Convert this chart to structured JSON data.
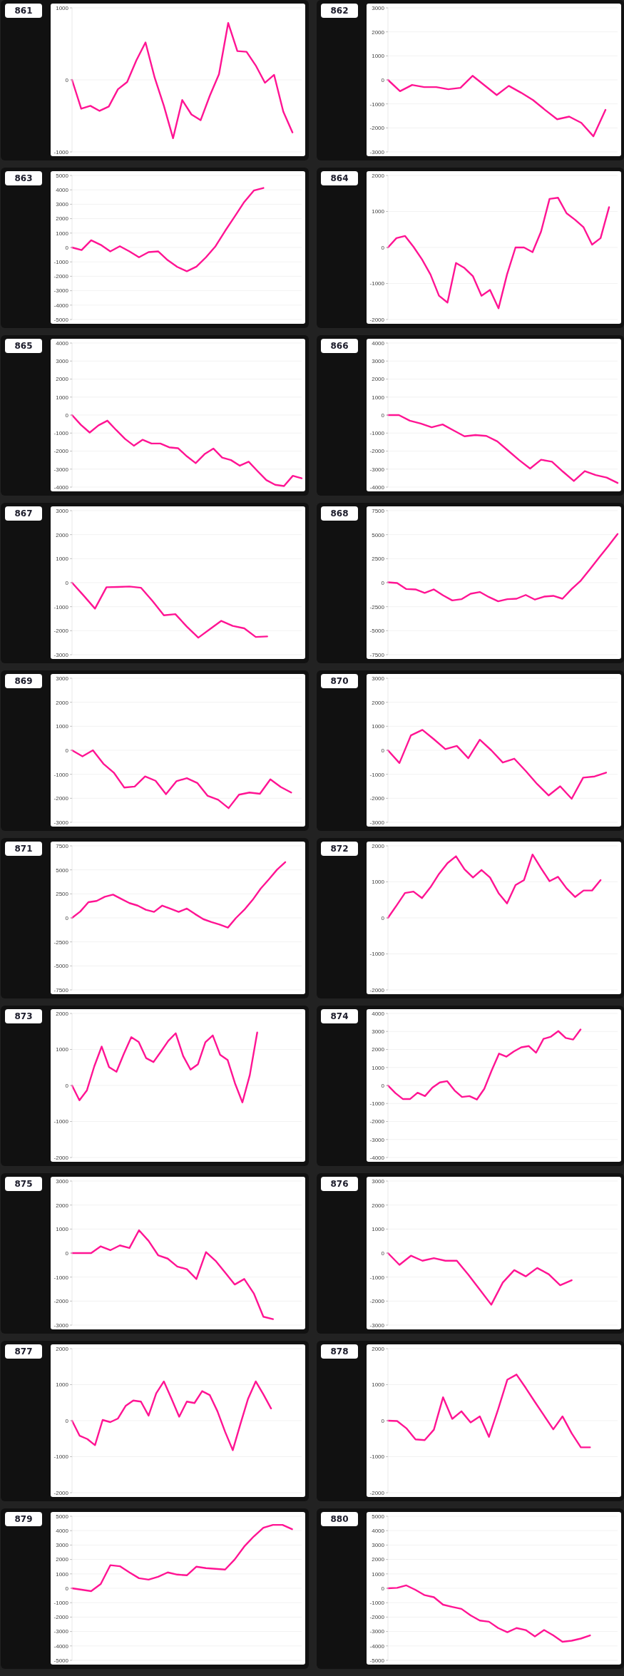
{
  "chart_data": [
    {
      "type": "line",
      "title": "861",
      "color": "#ff1493",
      "grid": "y",
      "tick_labels": "y",
      "ylim": [
        -1000,
        1000
      ],
      "yticks": [
        -1000,
        0,
        1000
      ],
      "categories": [
        null,
        null,
        null,
        null,
        null,
        null,
        null,
        null,
        null,
        null,
        null,
        null,
        null,
        null,
        null,
        null,
        null,
        null,
        null,
        null,
        null,
        null,
        null,
        null,
        null,
        null
      ],
      "values": [
        0,
        -400,
        -360,
        -430,
        -370,
        -130,
        -30,
        270,
        520,
        30,
        -360,
        -810,
        -280,
        -480,
        -560,
        -220,
        80,
        790,
        400,
        390,
        200,
        -40,
        70,
        -440,
        -730,
        null
      ]
    },
    {
      "type": "line",
      "title": "862",
      "color": "#ff1493",
      "grid": "y",
      "tick_labels": "y",
      "ylim": [
        -3000,
        3000
      ],
      "yticks": [
        -3000,
        -2000,
        -1000,
        0,
        1000,
        2000,
        3000
      ],
      "categories": [
        null,
        null,
        null,
        null,
        null,
        null,
        null,
        null,
        null,
        null,
        null,
        null,
        null,
        null,
        null,
        null,
        null,
        null,
        null,
        null
      ],
      "values": [
        0,
        -470,
        -210,
        -300,
        -300,
        -390,
        -330,
        170,
        -230,
        -630,
        -250,
        -530,
        -840,
        -1250,
        -1640,
        -1530,
        -1790,
        -2350,
        -1250,
        null
      ]
    },
    {
      "type": "line",
      "title": "863",
      "color": "#ff1493",
      "grid": "y",
      "tick_labels": "y",
      "ylim": [
        -5000,
        5000
      ],
      "yticks": [
        -5000,
        -4000,
        -3000,
        -2000,
        -1000,
        0,
        1000,
        2000,
        3000,
        4000,
        5000
      ],
      "categories": [
        null,
        null,
        null,
        null,
        null,
        null,
        null,
        null,
        null,
        null,
        null,
        null,
        null,
        null,
        null,
        null,
        null,
        null,
        null,
        null,
        null,
        null,
        null,
        null,
        null
      ],
      "values": [
        0,
        -180,
        500,
        180,
        -270,
        90,
        -270,
        -680,
        -320,
        -270,
        -880,
        -1350,
        -1650,
        -1330,
        -680,
        90,
        1150,
        2150,
        3160,
        3950,
        4130,
        null,
        null,
        null,
        null
      ]
    },
    {
      "type": "line",
      "title": "864",
      "color": "#ff1493",
      "grid": "y",
      "tick_labels": "y",
      "ylim": [
        -2000,
        2000
      ],
      "yticks": [
        -2000,
        -1000,
        0,
        1000,
        2000
      ],
      "categories": [
        null,
        null,
        null,
        null,
        null,
        null,
        null,
        null,
        null,
        null,
        null,
        null,
        null,
        null,
        null,
        null,
        null,
        null,
        null,
        null,
        null,
        null,
        null,
        null,
        null,
        null,
        null,
        null
      ],
      "values": [
        0,
        260,
        320,
        20,
        -330,
        -750,
        -1340,
        -1530,
        -430,
        -570,
        -800,
        -1340,
        -1180,
        -1690,
        -750,
        0,
        0,
        -130,
        440,
        1350,
        1380,
        950,
        770,
        560,
        80,
        260,
        1120,
        null
      ]
    },
    {
      "type": "line",
      "title": "865",
      "color": "#ff1493",
      "grid": "y",
      "tick_labels": "y",
      "ylim": [
        -4000,
        4000
      ],
      "yticks": [
        -4000,
        -3000,
        -2000,
        -1000,
        0,
        1000,
        2000,
        3000,
        4000
      ],
      "categories": [
        null,
        null,
        null,
        null,
        null,
        null,
        null,
        null,
        null,
        null,
        null,
        null,
        null,
        null,
        null,
        null,
        null,
        null,
        null,
        null,
        null,
        null,
        null,
        null,
        null,
        null,
        null
      ],
      "values": [
        0,
        -540,
        -970,
        -570,
        -310,
        -830,
        -1320,
        -1700,
        -1370,
        -1580,
        -1580,
        -1790,
        -1840,
        -2290,
        -2670,
        -2170,
        -1860,
        -2360,
        -2500,
        -2810,
        -2590,
        -3110,
        -3610,
        -3870,
        -3940,
        -3370,
        -3510
      ]
    },
    {
      "type": "line",
      "title": "866",
      "color": "#ff1493",
      "grid": "y",
      "tick_labels": "y",
      "ylim": [
        -4000,
        4000
      ],
      "yticks": [
        -4000,
        -3000,
        -2000,
        -1000,
        0,
        1000,
        2000,
        3000,
        4000
      ],
      "categories": [
        null,
        null,
        null,
        null,
        null,
        null,
        null,
        null,
        null,
        null,
        null,
        null,
        null,
        null,
        null,
        null,
        null,
        null,
        null,
        null,
        null,
        null
      ],
      "values": [
        0,
        0,
        -310,
        -470,
        -680,
        -520,
        -850,
        -1180,
        -1110,
        -1160,
        -1460,
        -1980,
        -2500,
        -2970,
        -2480,
        -2590,
        -3140,
        -3660,
        -3110,
        -3330,
        -3470,
        -3770
      ]
    },
    {
      "type": "line",
      "title": "867",
      "color": "#ff1493",
      "grid": "y",
      "tick_labels": "y",
      "ylim": [
        -3000,
        3000
      ],
      "yticks": [
        -3000,
        -2000,
        -1000,
        0,
        1000,
        2000,
        3000
      ],
      "categories": [
        null,
        null,
        null,
        null,
        null,
        null,
        null,
        null,
        null,
        null,
        null,
        null,
        null,
        null,
        null,
        null,
        null,
        null,
        null,
        null,
        null
      ],
      "values": [
        0,
        -530,
        -1080,
        -190,
        -180,
        -160,
        -210,
        -760,
        -1360,
        -1310,
        -1830,
        -2290,
        -1940,
        -1590,
        -1800,
        -1900,
        -2260,
        -2240,
        null,
        null,
        null
      ]
    },
    {
      "type": "line",
      "title": "868",
      "color": "#ff1493",
      "grid": "y",
      "tick_labels": "y",
      "ylim": [
        -7500,
        7500
      ],
      "yticks": [
        -7500,
        -5000,
        -2500,
        0,
        2500,
        5000,
        7500
      ],
      "categories": [
        null,
        null,
        null,
        null,
        null,
        null,
        null,
        null,
        null,
        null,
        null,
        null,
        null,
        null,
        null,
        null,
        null,
        null,
        null,
        null,
        null,
        null,
        null,
        null,
        null,
        null
      ],
      "values": [
        40,
        -40,
        -660,
        -700,
        -1060,
        -700,
        -1320,
        -1850,
        -1720,
        -1150,
        -970,
        -1500,
        -1940,
        -1720,
        -1670,
        -1280,
        -1760,
        -1450,
        -1370,
        -1670,
        -660,
        220,
        1410,
        2640,
        3830,
        5070
      ]
    },
    {
      "type": "line",
      "title": "869",
      "color": "#ff1493",
      "grid": "y",
      "tick_labels": "y",
      "ylim": [
        -3000,
        3000
      ],
      "yticks": [
        -3000,
        -2000,
        -1000,
        0,
        1000,
        2000,
        3000
      ],
      "categories": [
        null,
        null,
        null,
        null,
        null,
        null,
        null,
        null,
        null,
        null,
        null,
        null,
        null,
        null,
        null,
        null,
        null,
        null,
        null,
        null,
        null,
        null,
        null
      ],
      "values": [
        0,
        -250,
        0,
        -560,
        -930,
        -1550,
        -1510,
        -1090,
        -1270,
        -1830,
        -1290,
        -1160,
        -1360,
        -1900,
        -2060,
        -2410,
        -1850,
        -1760,
        -1810,
        -1210,
        -1530,
        -1760,
        null
      ]
    },
    {
      "type": "line",
      "title": "870",
      "color": "#ff1493",
      "grid": "y",
      "tick_labels": "y",
      "ylim": [
        -3000,
        3000
      ],
      "yticks": [
        -3000,
        -2000,
        -1000,
        0,
        1000,
        2000,
        3000
      ],
      "categories": [
        null,
        null,
        null,
        null,
        null,
        null,
        null,
        null,
        null,
        null,
        null,
        null,
        null,
        null,
        null,
        null,
        null,
        null,
        null,
        null,
        null
      ],
      "values": [
        0,
        -530,
        620,
        850,
        460,
        50,
        180,
        -330,
        440,
        0,
        -510,
        -350,
        -860,
        -1410,
        -1880,
        -1500,
        -2020,
        -1140,
        -1090,
        -930,
        null
      ]
    },
    {
      "type": "line",
      "title": "871",
      "color": "#ff1493",
      "grid": "y",
      "tick_labels": "y",
      "ylim": [
        -7500,
        7500
      ],
      "yticks": [
        -7500,
        -5000,
        -2500,
        0,
        2500,
        5000,
        7500
      ],
      "categories": [
        null,
        null,
        null,
        null,
        null,
        null,
        null,
        null,
        null,
        null,
        null,
        null,
        null,
        null,
        null,
        null,
        null,
        null,
        null,
        null,
        null,
        null,
        null,
        null,
        null,
        null,
        null,
        null,
        null
      ],
      "values": [
        0,
        660,
        1630,
        1760,
        2200,
        2420,
        1980,
        1540,
        1280,
        840,
        620,
        1280,
        950,
        620,
        970,
        400,
        -130,
        -440,
        -700,
        -1010,
        0,
        840,
        1850,
        3040,
        4010,
        5020,
        5810,
        null,
        null
      ]
    },
    {
      "type": "line",
      "title": "872",
      "color": "#ff1493",
      "grid": "y",
      "tick_labels": "y",
      "ylim": [
        -2000,
        2000
      ],
      "yticks": [
        -2000,
        -1000,
        0,
        1000,
        2000
      ],
      "categories": [
        null,
        null,
        null,
        null,
        null,
        null,
        null,
        null,
        null,
        null,
        null,
        null,
        null,
        null,
        null,
        null,
        null,
        null,
        null,
        null,
        null,
        null,
        null,
        null,
        null,
        null,
        null,
        null
      ],
      "values": [
        0,
        340,
        690,
        730,
        550,
        850,
        1220,
        1520,
        1710,
        1350,
        1120,
        1330,
        1120,
        690,
        400,
        910,
        1050,
        1760,
        1380,
        1020,
        1140,
        820,
        580,
        760,
        760,
        1050,
        null,
        null
      ]
    },
    {
      "type": "line",
      "title": "873",
      "color": "#ff1493",
      "grid": "y",
      "tick_labels": "y",
      "ylim": [
        -2000,
        2000
      ],
      "yticks": [
        -2000,
        -1000,
        0,
        1000,
        2000
      ],
      "categories": [
        null,
        null,
        null,
        null,
        null,
        null,
        null,
        null,
        null,
        null,
        null,
        null,
        null,
        null,
        null,
        null,
        null,
        null,
        null,
        null,
        null,
        null,
        null,
        null,
        null,
        null,
        null,
        null,
        null,
        null,
        null,
        null
      ],
      "values": [
        0,
        -410,
        -140,
        530,
        1080,
        510,
        380,
        880,
        1340,
        1210,
        760,
        650,
        940,
        1240,
        1450,
        820,
        440,
        590,
        1200,
        1390,
        850,
        710,
        60,
        -470,
        290,
        1470,
        null,
        null,
        null,
        null,
        null,
        null
      ]
    },
    {
      "type": "line",
      "title": "874",
      "color": "#ff1493",
      "grid": "y",
      "tick_labels": "y",
      "ylim": [
        -4000,
        4000
      ],
      "yticks": [
        -4000,
        -3000,
        -2000,
        -1000,
        0,
        1000,
        2000,
        3000,
        4000
      ],
      "categories": [
        null,
        null,
        null,
        null,
        null,
        null,
        null,
        null,
        null,
        null,
        null,
        null,
        null,
        null,
        null,
        null,
        null,
        null,
        null,
        null,
        null,
        null,
        null,
        null,
        null,
        null,
        null,
        null,
        null,
        null,
        null,
        null
      ],
      "values": [
        0,
        -420,
        -750,
        -750,
        -400,
        -590,
        -120,
        170,
        240,
        -280,
        -640,
        -590,
        -780,
        -190,
        830,
        1770,
        1600,
        1890,
        2120,
        2190,
        1820,
        2590,
        2710,
        3020,
        2640,
        2550,
        3110,
        null,
        null,
        null,
        null,
        null
      ]
    },
    {
      "type": "line",
      "title": "875",
      "color": "#ff1493",
      "grid": "y",
      "tick_labels": "y",
      "ylim": [
        -3000,
        3000
      ],
      "yticks": [
        -3000,
        -2000,
        -1000,
        0,
        1000,
        2000,
        3000
      ],
      "categories": [
        null,
        null,
        null,
        null,
        null,
        null,
        null,
        null,
        null,
        null,
        null,
        null,
        null,
        null,
        null,
        null,
        null,
        null,
        null,
        null,
        null,
        null,
        null,
        null,
        null
      ],
      "values": [
        0,
        0,
        0,
        280,
        120,
        320,
        210,
        950,
        510,
        -90,
        -230,
        -560,
        -670,
        -1080,
        40,
        -320,
        -810,
        -1310,
        -1080,
        -1680,
        -2650,
        -2750,
        null,
        null,
        null
      ]
    },
    {
      "type": "line",
      "title": "876",
      "color": "#ff1493",
      "grid": "y",
      "tick_labels": "y",
      "ylim": [
        -3000,
        3000
      ],
      "yticks": [
        -3000,
        -2000,
        -1000,
        0,
        1000,
        2000,
        3000
      ],
      "categories": [
        null,
        null,
        null,
        null,
        null,
        null,
        null,
        null,
        null,
        null,
        null,
        null,
        null,
        null,
        null,
        null,
        null,
        null,
        null,
        null,
        null
      ],
      "values": [
        0,
        -490,
        -110,
        -320,
        -210,
        -320,
        -320,
        -900,
        -1520,
        -2150,
        -1230,
        -710,
        -970,
        -620,
        -880,
        -1340,
        -1130,
        null,
        null,
        null,
        null
      ]
    },
    {
      "type": "line",
      "title": "877",
      "color": "#ff1493",
      "grid": "y",
      "tick_labels": "y",
      "ylim": [
        -2000,
        2000
      ],
      "yticks": [
        -2000,
        -1000,
        0,
        1000,
        2000
      ],
      "categories": [
        null,
        null,
        null,
        null,
        null,
        null,
        null,
        null,
        null,
        null,
        null,
        null,
        null,
        null,
        null,
        null,
        null,
        null,
        null,
        null,
        null,
        null,
        null,
        null,
        null,
        null,
        null,
        null,
        null,
        null,
        null
      ],
      "values": [
        0,
        -420,
        -510,
        -680,
        20,
        -40,
        60,
        410,
        560,
        530,
        140,
        760,
        1090,
        610,
        110,
        530,
        490,
        820,
        710,
        260,
        -310,
        -820,
        -90,
        610,
        1090,
        730,
        340,
        null,
        null,
        null,
        null
      ]
    },
    {
      "type": "line",
      "title": "878",
      "color": "#ff1493",
      "grid": "y",
      "tick_labels": "y",
      "ylim": [
        -2000,
        2000
      ],
      "yticks": [
        -2000,
        -1000,
        0,
        1000,
        2000
      ],
      "categories": [
        null,
        null,
        null,
        null,
        null,
        null,
        null,
        null,
        null,
        null,
        null,
        null,
        null,
        null,
        null,
        null,
        null,
        null,
        null,
        null,
        null,
        null,
        null,
        null,
        null,
        null
      ],
      "values": [
        0,
        -10,
        -210,
        -520,
        -540,
        -250,
        650,
        50,
        260,
        -50,
        120,
        -450,
        320,
        1140,
        1280,
        910,
        520,
        140,
        -240,
        120,
        -350,
        -740,
        -740,
        null,
        null,
        null
      ]
    },
    {
      "type": "line",
      "title": "879",
      "color": "#ff1493",
      "grid": "y",
      "tick_labels": "y",
      "ylim": [
        -5000,
        5000
      ],
      "yticks": [
        -5000,
        -4000,
        -3000,
        -2000,
        -1000,
        0,
        1000,
        2000,
        3000,
        4000,
        5000
      ],
      "categories": [
        null,
        null,
        null,
        null,
        null,
        null,
        null,
        null,
        null,
        null,
        null,
        null,
        null,
        null,
        null,
        null,
        null,
        null,
        null,
        null,
        null,
        null,
        null,
        null,
        null
      ],
      "values": [
        0,
        -100,
        -200,
        300,
        1600,
        1530,
        1100,
        700,
        600,
        800,
        1100,
        950,
        900,
        1500,
        1400,
        1350,
        1300,
        2000,
        2900,
        3600,
        4200,
        4400,
        4400,
        4100,
        null
      ]
    },
    {
      "type": "line",
      "title": "880",
      "color": "#ff1493",
      "grid": "y",
      "tick_labels": "y",
      "ylim": [
        -5000,
        5000
      ],
      "yticks": [
        -5000,
        -4000,
        -3000,
        -2000,
        -1000,
        0,
        1000,
        2000,
        3000,
        4000,
        5000
      ],
      "categories": [
        null,
        null,
        null,
        null,
        null,
        null,
        null,
        null,
        null,
        null,
        null,
        null,
        null,
        null,
        null,
        null,
        null,
        null,
        null,
        null,
        null,
        null,
        null,
        null,
        null,
        null
      ],
      "values": [
        0,
        30,
        200,
        -110,
        -480,
        -620,
        -1140,
        -1290,
        -1430,
        -1880,
        -2240,
        -2320,
        -2760,
        -3050,
        -2760,
        -2900,
        -3340,
        -2900,
        -3270,
        -3710,
        -3640,
        -3490,
        -3270,
        null,
        null,
        null
      ]
    }
  ]
}
